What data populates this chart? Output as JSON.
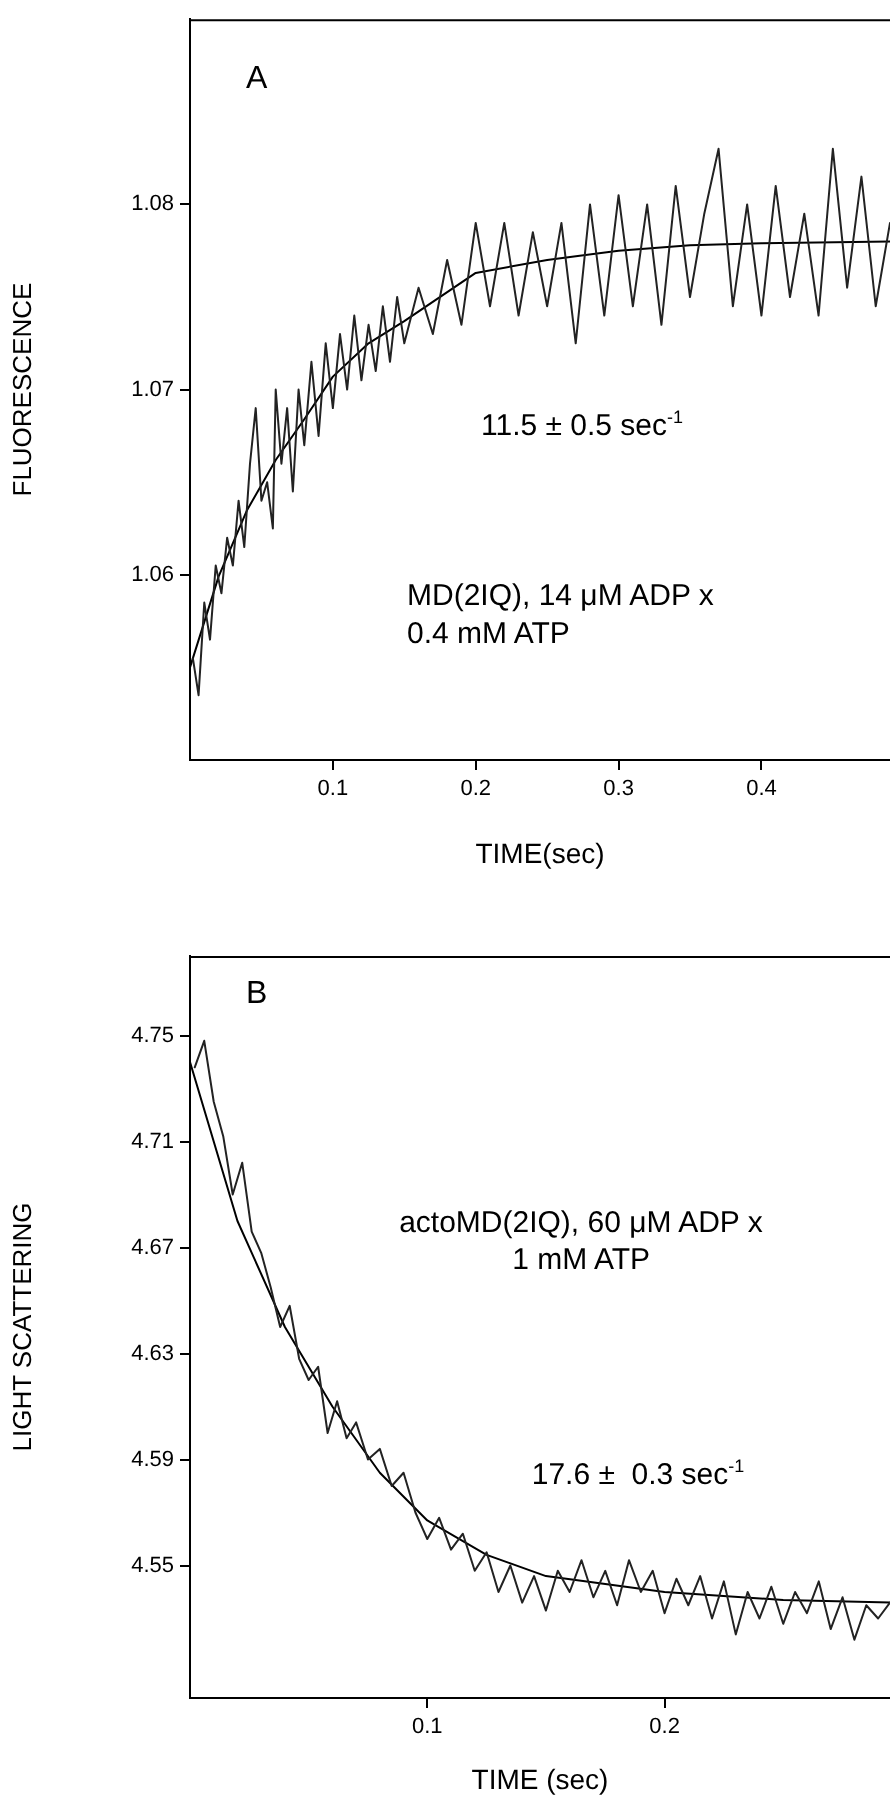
{
  "chart_data": [
    {
      "type": "line",
      "xlabel": "TIME(sec)",
      "ylabel": "FLUORESCENCE",
      "xlim": [
        0,
        0.49
      ],
      "ylim": [
        1.05,
        1.09
      ],
      "xticks": [
        0.1,
        0.2,
        0.3,
        0.4
      ],
      "yticks": [
        1.06,
        1.07,
        1.08
      ],
      "annotations": [
        "A",
        "11.5 ± 0.5 sec$^{-1}$",
        "MD(2IQ), 14 μM ADP x\n0.4 mM ATP"
      ],
      "series": [
        {
          "type": "line",
          "color": "#222222",
          "x": [
            0.002,
            0.006,
            0.01,
            0.014,
            0.018,
            0.022,
            0.026,
            0.03,
            0.034,
            0.038,
            0.042,
            0.046,
            0.05,
            0.054,
            0.058,
            0.06,
            0.064,
            0.068,
            0.072,
            0.076,
            0.08,
            0.085,
            0.09,
            0.095,
            0.1,
            0.105,
            0.11,
            0.115,
            0.12,
            0.125,
            0.13,
            0.135,
            0.14,
            0.145,
            0.15,
            0.16,
            0.17,
            0.18,
            0.19,
            0.2,
            0.21,
            0.22,
            0.23,
            0.24,
            0.25,
            0.26,
            0.27,
            0.28,
            0.29,
            0.3,
            0.31,
            0.32,
            0.33,
            0.34,
            0.35,
            0.36,
            0.37,
            0.38,
            0.39,
            0.4,
            0.41,
            0.42,
            0.43,
            0.44,
            0.45,
            0.46,
            0.47,
            0.48,
            0.49
          ],
          "values": [
            1.0555,
            1.0535,
            1.0585,
            1.0565,
            1.0605,
            1.059,
            1.062,
            1.0605,
            1.064,
            1.0615,
            1.066,
            1.069,
            1.064,
            1.065,
            1.0625,
            1.07,
            1.066,
            1.069,
            1.0645,
            1.07,
            1.067,
            1.0715,
            1.0675,
            1.0725,
            1.069,
            1.073,
            1.07,
            1.074,
            1.0705,
            1.0735,
            1.071,
            1.0745,
            1.0715,
            1.075,
            1.0725,
            1.0755,
            1.073,
            1.077,
            1.0735,
            1.079,
            1.0745,
            1.079,
            1.074,
            1.0785,
            1.0745,
            1.079,
            1.0725,
            1.08,
            1.074,
            1.0805,
            1.0745,
            1.08,
            1.0735,
            1.081,
            1.075,
            1.0795,
            1.083,
            1.0745,
            1.08,
            1.074,
            1.081,
            1.075,
            1.0795,
            1.074,
            1.083,
            1.0755,
            1.0815,
            1.0745,
            1.079
          ]
        },
        {
          "type": "line",
          "color": "#000000",
          "x": [
            0,
            0.02,
            0.04,
            0.06,
            0.08,
            0.1,
            0.125,
            0.15,
            0.2,
            0.25,
            0.3,
            0.35,
            0.4,
            0.49
          ],
          "values": [
            1.055,
            1.0599,
            1.0635,
            1.0662,
            1.0684,
            1.0707,
            1.0725,
            1.0737,
            1.0763,
            1.077,
            1.0775,
            1.0778,
            1.0779,
            1.078
          ]
        }
      ]
    },
    {
      "type": "line",
      "xlabel": "TIME (sec)",
      "ylabel": "LIGHT SCATTERING",
      "xlim": [
        0,
        0.295
      ],
      "ylim": [
        4.5,
        4.78
      ],
      "xticks": [
        0.1,
        0.2
      ],
      "yticks": [
        4.55,
        4.59,
        4.63,
        4.67,
        4.71,
        4.75
      ],
      "annotations": [
        "B",
        "actoMD(2IQ), 60 μM ADP x\n1 mM ATP",
        "17.6 ±  0.3 sec$^{-1}$"
      ],
      "series": [
        {
          "type": "line",
          "color": "#222222",
          "x": [
            0.002,
            0.006,
            0.01,
            0.014,
            0.018,
            0.022,
            0.026,
            0.03,
            0.034,
            0.038,
            0.042,
            0.046,
            0.05,
            0.054,
            0.058,
            0.062,
            0.066,
            0.07,
            0.075,
            0.08,
            0.085,
            0.09,
            0.095,
            0.1,
            0.105,
            0.11,
            0.115,
            0.12,
            0.125,
            0.13,
            0.135,
            0.14,
            0.145,
            0.15,
            0.155,
            0.16,
            0.165,
            0.17,
            0.175,
            0.18,
            0.185,
            0.19,
            0.195,
            0.2,
            0.205,
            0.21,
            0.215,
            0.22,
            0.225,
            0.23,
            0.235,
            0.24,
            0.245,
            0.25,
            0.255,
            0.26,
            0.265,
            0.27,
            0.275,
            0.28,
            0.285,
            0.29,
            0.295
          ],
          "values": [
            4.738,
            4.748,
            4.725,
            4.712,
            4.69,
            4.702,
            4.676,
            4.668,
            4.655,
            4.64,
            4.648,
            4.628,
            4.62,
            4.625,
            4.6,
            4.612,
            4.598,
            4.604,
            4.59,
            4.594,
            4.58,
            4.585,
            4.57,
            4.56,
            4.568,
            4.556,
            4.562,
            4.548,
            4.555,
            4.54,
            4.55,
            4.536,
            4.546,
            4.533,
            4.548,
            4.54,
            4.552,
            4.538,
            4.548,
            4.535,
            4.552,
            4.54,
            4.548,
            4.532,
            4.545,
            4.535,
            4.546,
            4.53,
            4.544,
            4.524,
            4.54,
            4.53,
            4.542,
            4.528,
            4.54,
            4.532,
            4.544,
            4.526,
            4.538,
            4.522,
            4.535,
            4.53,
            4.536
          ]
        },
        {
          "type": "line",
          "color": "#000000",
          "x": [
            0,
            0.02,
            0.04,
            0.06,
            0.08,
            0.1,
            0.125,
            0.15,
            0.2,
            0.25,
            0.295
          ],
          "values": [
            4.74,
            4.68,
            4.64,
            4.61,
            4.585,
            4.567,
            4.554,
            4.546,
            4.54,
            4.537,
            4.536
          ]
        }
      ]
    }
  ]
}
